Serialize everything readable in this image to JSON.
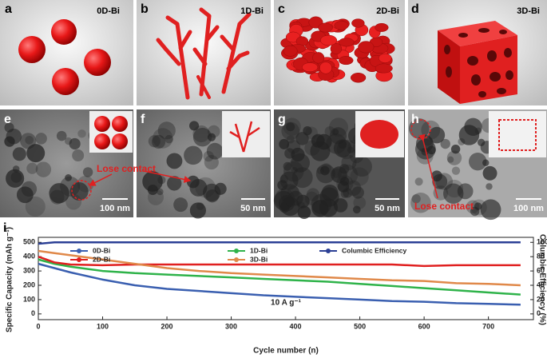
{
  "panels": [
    {
      "letter": "a",
      "label": "0D-Bi"
    },
    {
      "letter": "b",
      "label": "1D-Bi"
    },
    {
      "letter": "c",
      "label": "2D-Bi"
    },
    {
      "letter": "d",
      "label": "3D-Bi"
    }
  ],
  "tem": [
    {
      "letter": "e",
      "scale": "100 nm",
      "annotation": "Lose contact"
    },
    {
      "letter": "f",
      "scale": "50 nm"
    },
    {
      "letter": "g",
      "scale": "50 nm"
    },
    {
      "letter": "h",
      "scale": "100 nm",
      "annotation": "Lose contact"
    }
  ],
  "chart_data": {
    "type": "line",
    "letter": "i",
    "annotation": "10 A g⁻¹",
    "x_label": "Cycle number (n)",
    "y_label": "Specific Capacity (mAh g⁻¹)",
    "y2_label": "Columbic Efficiency (%)",
    "x": [
      0,
      25,
      50,
      100,
      150,
      200,
      250,
      300,
      350,
      400,
      450,
      500,
      550,
      600,
      650,
      700,
      750
    ],
    "series": [
      {
        "name": "0D-Bi",
        "color": "#3a5fb0",
        "values": [
          350,
          320,
          290,
          240,
          200,
          175,
          160,
          145,
          130,
          120,
          110,
          100,
          90,
          85,
          75,
          70,
          65
        ]
      },
      {
        "name": "1D-Bi",
        "color": "#2fb34a",
        "values": [
          380,
          350,
          330,
          300,
          285,
          275,
          265,
          255,
          245,
          235,
          225,
          210,
          195,
          180,
          165,
          150,
          135
        ]
      },
      {
        "name": "Columbic Efficiency",
        "color": "#2b3f95",
        "axis": "y2",
        "values": [
          98,
          100,
          100,
          100,
          100,
          100,
          100,
          100,
          100,
          100,
          100,
          100,
          100,
          100,
          100,
          100,
          100
        ]
      },
      {
        "name": "2D-Bi",
        "color": "#e02020",
        "values": [
          400,
          360,
          345,
          340,
          345,
          345,
          345,
          345,
          345,
          345,
          345,
          345,
          345,
          335,
          340,
          340,
          340
        ]
      },
      {
        "name": "3D-Bi",
        "color": "#e0894a",
        "values": [
          440,
          425,
          410,
          380,
          350,
          320,
          300,
          285,
          275,
          265,
          255,
          245,
          235,
          230,
          215,
          210,
          200
        ]
      }
    ],
    "xlim": [
      0,
      770
    ],
    "xticks": [
      0,
      100,
      200,
      300,
      400,
      500,
      600,
      700
    ],
    "ylim": [
      -40,
      535
    ],
    "yticks": [
      0,
      100,
      200,
      300,
      400,
      500
    ],
    "y2lim": [
      -8,
      107
    ],
    "y2ticks": [
      0,
      20,
      40,
      60,
      80,
      100
    ]
  }
}
